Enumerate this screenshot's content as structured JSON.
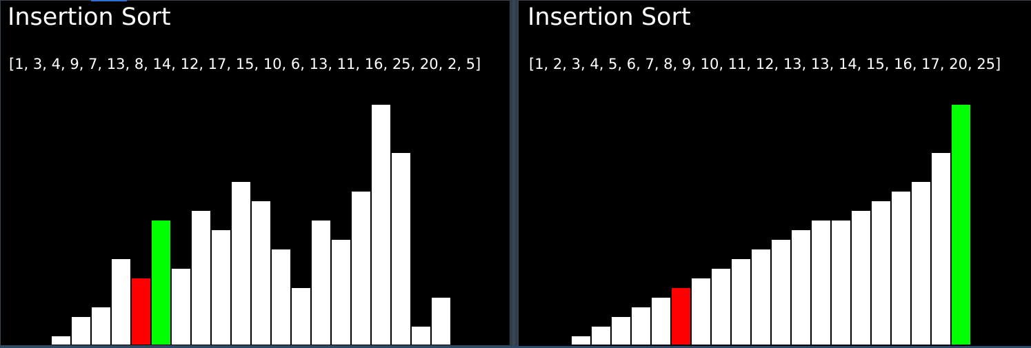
{
  "colors": {
    "background": "#000000",
    "bar": "#ffffff",
    "compare": "#ff0000",
    "current": "#00ff00"
  },
  "panels": [
    {
      "title": "Insertion Sort",
      "array_text": "[1, 3, 4, 9, 7, 13, 8, 14, 12, 17, 15, 10, 6, 13, 11, 16, 25, 20, 2, 5]",
      "bars": [
        {
          "value": 1,
          "state": "normal"
        },
        {
          "value": 3,
          "state": "normal"
        },
        {
          "value": 4,
          "state": "normal"
        },
        {
          "value": 9,
          "state": "normal"
        },
        {
          "value": 7,
          "state": "compare"
        },
        {
          "value": 13,
          "state": "current"
        },
        {
          "value": 8,
          "state": "normal"
        },
        {
          "value": 14,
          "state": "normal"
        },
        {
          "value": 12,
          "state": "normal"
        },
        {
          "value": 17,
          "state": "normal"
        },
        {
          "value": 15,
          "state": "normal"
        },
        {
          "value": 10,
          "state": "normal"
        },
        {
          "value": 6,
          "state": "normal"
        },
        {
          "value": 13,
          "state": "normal"
        },
        {
          "value": 11,
          "state": "normal"
        },
        {
          "value": 16,
          "state": "normal"
        },
        {
          "value": 25,
          "state": "normal"
        },
        {
          "value": 20,
          "state": "normal"
        },
        {
          "value": 2,
          "state": "normal"
        },
        {
          "value": 5,
          "state": "normal"
        }
      ]
    },
    {
      "title": "Insertion Sort",
      "array_text": "[1, 2, 3, 4, 5, 6, 7, 8, 9, 10, 11, 12, 13, 13, 14, 15, 16, 17, 20, 25]",
      "bars": [
        {
          "value": 1,
          "state": "normal"
        },
        {
          "value": 2,
          "state": "normal"
        },
        {
          "value": 3,
          "state": "normal"
        },
        {
          "value": 4,
          "state": "normal"
        },
        {
          "value": 5,
          "state": "normal"
        },
        {
          "value": 6,
          "state": "compare"
        },
        {
          "value": 7,
          "state": "normal"
        },
        {
          "value": 8,
          "state": "normal"
        },
        {
          "value": 9,
          "state": "normal"
        },
        {
          "value": 10,
          "state": "normal"
        },
        {
          "value": 11,
          "state": "normal"
        },
        {
          "value": 12,
          "state": "normal"
        },
        {
          "value": 13,
          "state": "normal"
        },
        {
          "value": 13,
          "state": "normal"
        },
        {
          "value": 14,
          "state": "normal"
        },
        {
          "value": 15,
          "state": "normal"
        },
        {
          "value": 16,
          "state": "normal"
        },
        {
          "value": 17,
          "state": "normal"
        },
        {
          "value": 20,
          "state": "normal"
        },
        {
          "value": 25,
          "state": "current"
        }
      ]
    }
  ]
}
